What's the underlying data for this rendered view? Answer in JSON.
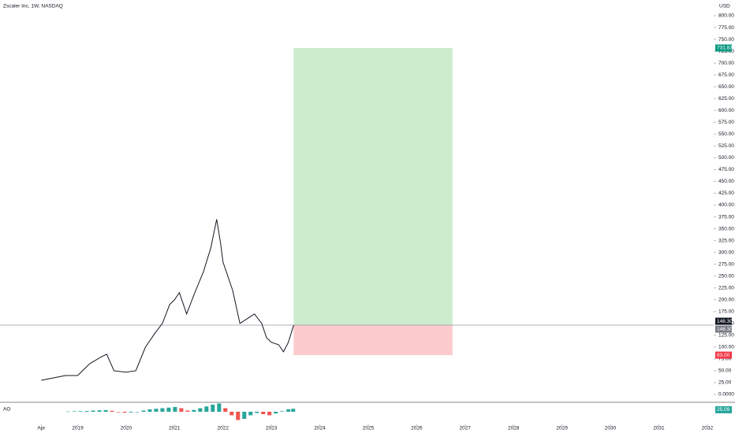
{
  "chart_data": [
    {
      "type": "line",
      "title": "Zscaler Inc, 1W, NASDAQ",
      "currency": "USD",
      "color": "#131722",
      "x": [
        2018.25,
        2018.5,
        2018.75,
        2019.0,
        2019.25,
        2019.5,
        2019.6,
        2019.75,
        2020.0,
        2020.2,
        2020.4,
        2020.6,
        2020.75,
        2020.9,
        2021.0,
        2021.1,
        2021.25,
        2021.4,
        2021.6,
        2021.75,
        2021.87,
        2021.95,
        2022.0,
        2022.2,
        2022.35,
        2022.5,
        2022.65,
        2022.8,
        2022.9,
        2023.0,
        2023.15,
        2023.25,
        2023.35,
        2023.46
      ],
      "values": [
        30,
        35,
        40,
        40,
        65,
        80,
        85,
        50,
        47,
        50,
        100,
        130,
        150,
        190,
        200,
        215,
        170,
        210,
        260,
        310,
        370,
        320,
        280,
        220,
        150,
        160,
        170,
        150,
        120,
        110,
        105,
        90,
        110,
        146.3
      ],
      "xlim": [
        2017.47,
        2032.1
      ],
      "xticks": [
        {
          "value": 2018.25,
          "label": "Apr"
        },
        2019,
        2020,
        2021,
        2022,
        2023,
        2024,
        2025,
        2026,
        2027,
        2028,
        2029,
        2030,
        2031,
        2032
      ],
      "ylim": [
        0,
        800
      ],
      "yticks": [
        {
          "value": 0,
          "label": "0.0000"
        },
        {
          "value": 25,
          "label": "25.00"
        },
        {
          "value": 50,
          "label": "50.00"
        },
        {
          "value": 75,
          "label": "75.00"
        },
        {
          "value": 100,
          "label": "100.00"
        },
        {
          "value": 125,
          "label": "125.00"
        },
        {
          "value": 150,
          "label": "150.00"
        },
        {
          "value": 175,
          "label": "175.00"
        },
        {
          "value": 200,
          "label": "200.00"
        },
        {
          "value": 225,
          "label": "225.00"
        },
        {
          "value": 250,
          "label": "250.00"
        },
        {
          "value": 275,
          "label": "275.00"
        },
        {
          "value": 300,
          "label": "300.00"
        },
        {
          "value": 325,
          "label": "325.00"
        },
        {
          "value": 350,
          "label": "350.00"
        },
        {
          "value": 375,
          "label": "375.00"
        },
        {
          "value": 400,
          "label": "400.00"
        },
        {
          "value": 425,
          "label": "425.00"
        },
        {
          "value": 450,
          "label": "450.00"
        },
        {
          "value": 475,
          "label": "475.00"
        },
        {
          "value": 500,
          "label": "500.00"
        },
        {
          "value": 525,
          "label": "525.00"
        },
        {
          "value": 550,
          "label": "550.00"
        },
        {
          "value": 575,
          "label": "575.00"
        },
        {
          "value": 600,
          "label": "600.00"
        },
        {
          "value": 625,
          "label": "625.00"
        },
        {
          "value": 650,
          "label": "650.00"
        },
        {
          "value": 675,
          "label": "675.00"
        },
        {
          "value": 700,
          "label": "700.00"
        },
        {
          "value": 725,
          "label": "725.00"
        },
        {
          "value": 750,
          "label": "750.00"
        },
        {
          "value": 775,
          "label": "775.00"
        },
        {
          "value": 800,
          "label": "800.00"
        }
      ],
      "price_line": {
        "value": 146.3,
        "label": "146.30"
      },
      "position": {
        "x": [
          2023.46,
          2026.74
        ],
        "target": 731.83,
        "stop": {
          "value": 83,
          "label": "83.00"
        },
        "profit_color": "#cdecce",
        "loss_color": "#fccbcd"
      }
    },
    {
      "type": "bar",
      "name": "AO",
      "up_color": "#26a69a",
      "down_color": "#ef5350",
      "x": [
        2018.8,
        2018.93,
        2019.06,
        2019.19,
        2019.32,
        2019.45,
        2019.58,
        2019.71,
        2019.84,
        2019.97,
        2020.1,
        2020.23,
        2020.36,
        2020.49,
        2020.62,
        2020.75,
        2020.88,
        2021.01,
        2021.14,
        2021.27,
        2021.4,
        2021.53,
        2021.66,
        2021.79,
        2021.92,
        2022.05,
        2022.18,
        2022.31,
        2022.44,
        2022.57,
        2022.7,
        2022.83,
        2022.96,
        2023.09,
        2023.22,
        2023.35,
        2023.45
      ],
      "values": [
        2,
        4,
        5,
        6,
        10,
        12,
        14,
        8,
        -4,
        -8,
        -6,
        -2,
        10,
        20,
        25,
        30,
        35,
        40,
        30,
        10,
        15,
        30,
        45,
        60,
        70,
        30,
        -30,
        -70,
        -60,
        -30,
        -10,
        -20,
        -30,
        -15,
        5,
        20,
        25.09
      ],
      "ylim": [
        -80,
        80
      ]
    }
  ]
}
